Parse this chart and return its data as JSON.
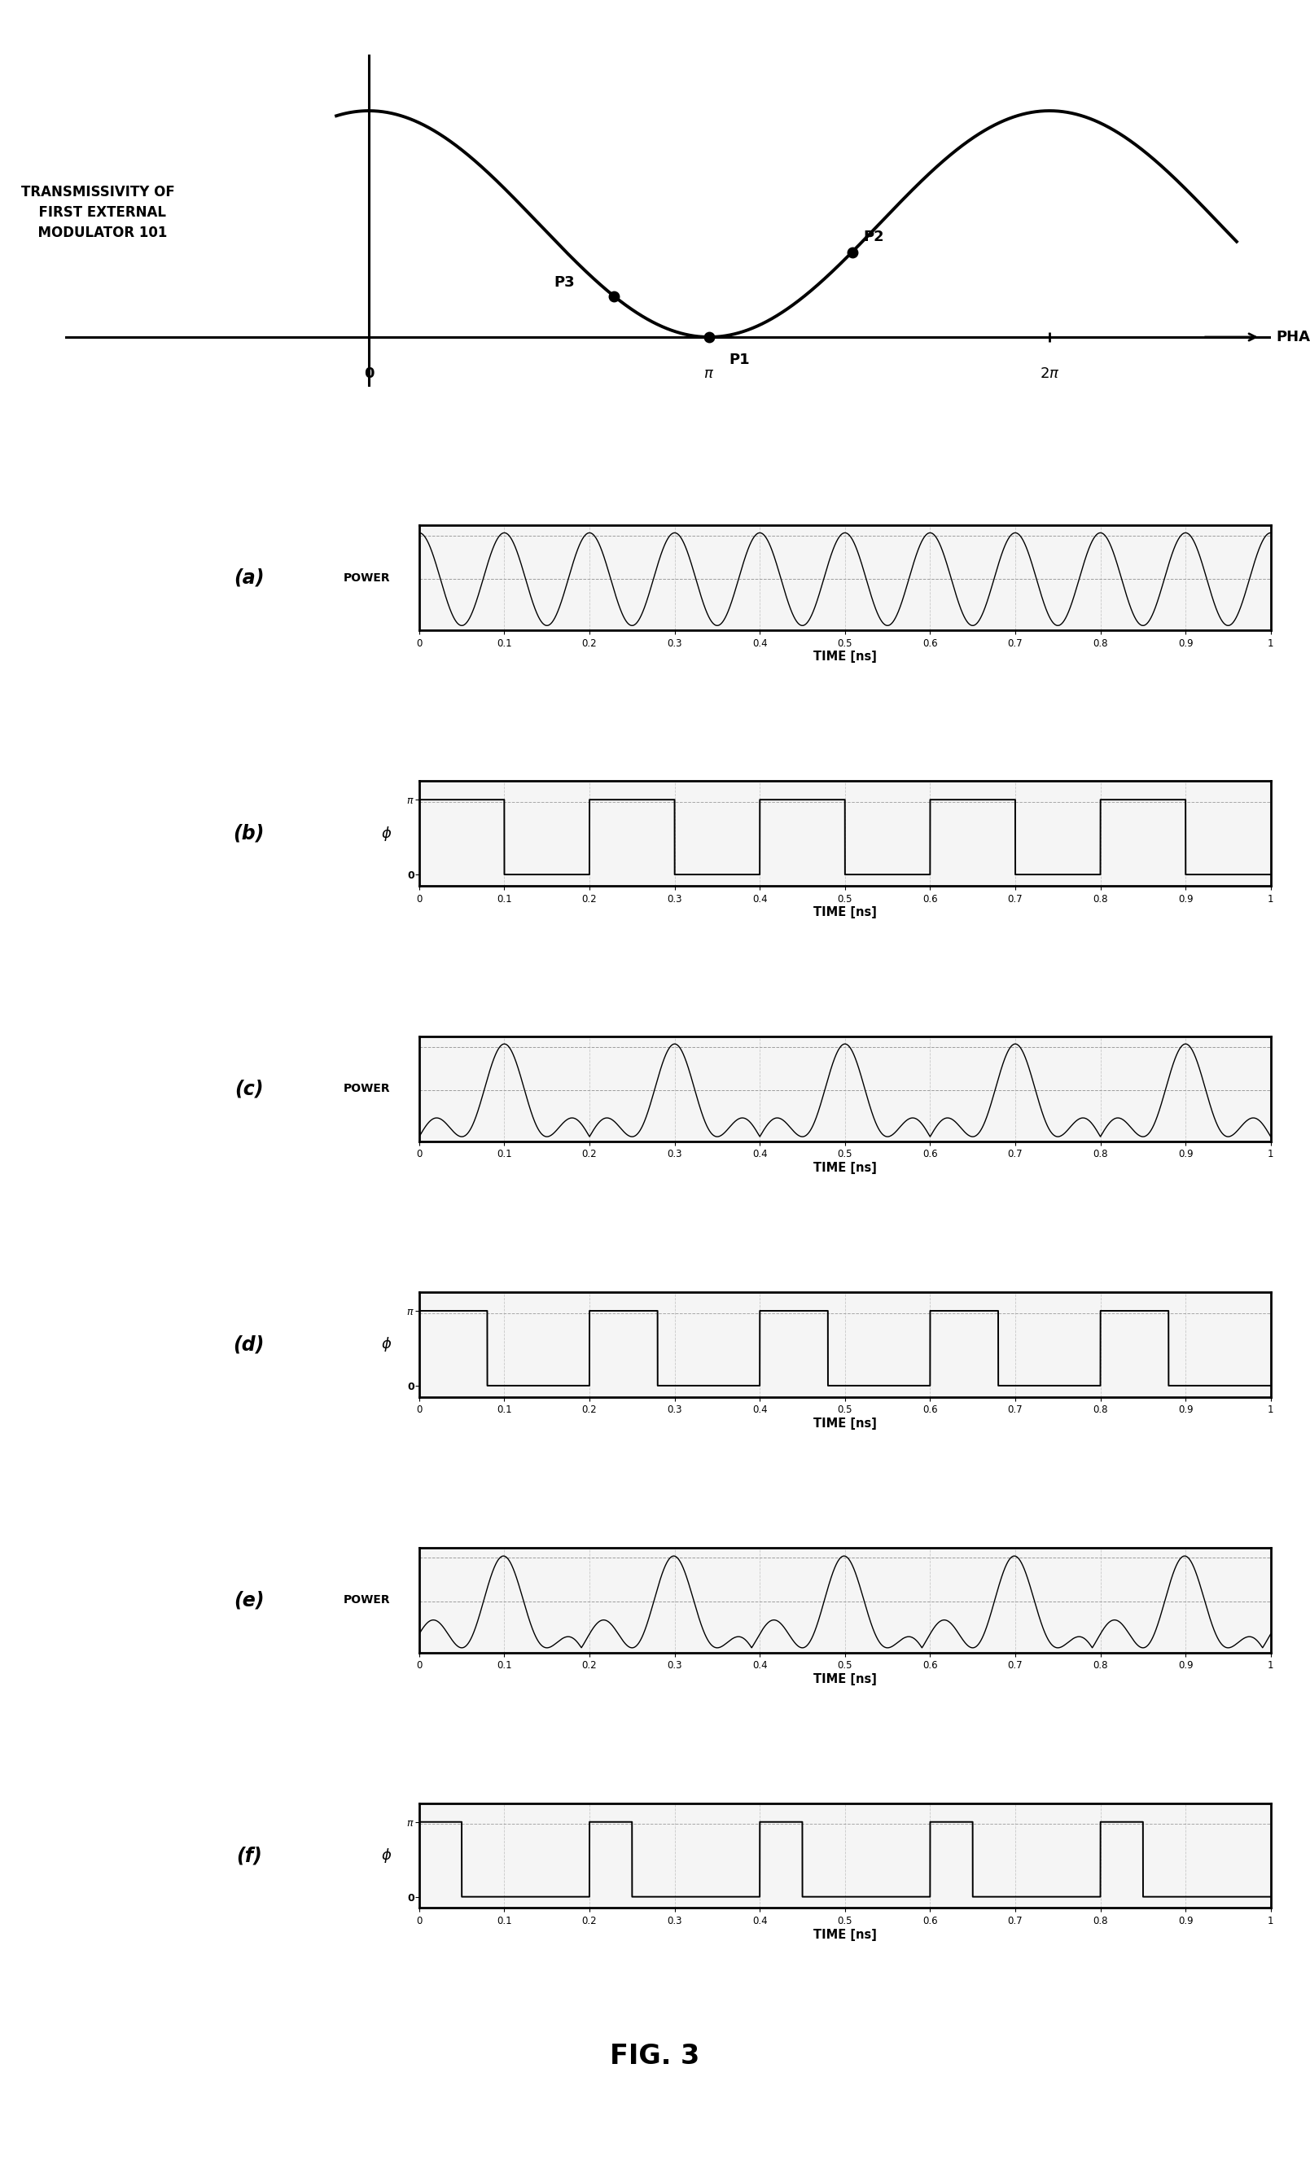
{
  "fig_title": "FIG. 3",
  "top_label_lines": [
    "TRANSMISSIVITY OF",
    "  FIRST EXTERNAL",
    "  MODULATOR 101"
  ],
  "phase_xlabel": "PHASE",
  "background_color": "#ffffff",
  "subplots": [
    {
      "label": "(a)",
      "side_text": "POWER",
      "type": "power_a"
    },
    {
      "label": "(b)",
      "side_text": null,
      "type": "phase_b"
    },
    {
      "label": "(c)",
      "side_text": "POWER",
      "type": "power_c"
    },
    {
      "label": "(d)",
      "side_text": null,
      "type": "phase_d"
    },
    {
      "label": "(e)",
      "side_text": "POWER",
      "type": "power_e"
    },
    {
      "label": "(f)",
      "side_text": null,
      "type": "phase_f"
    }
  ],
  "time_xlabel": "TIME [ns]",
  "time_xtick_labels": [
    "0",
    "0.1",
    "0.2",
    "0.3",
    "0.4",
    "0.5",
    "0.6",
    "0.7",
    "0.8",
    "0.9",
    "1"
  ]
}
